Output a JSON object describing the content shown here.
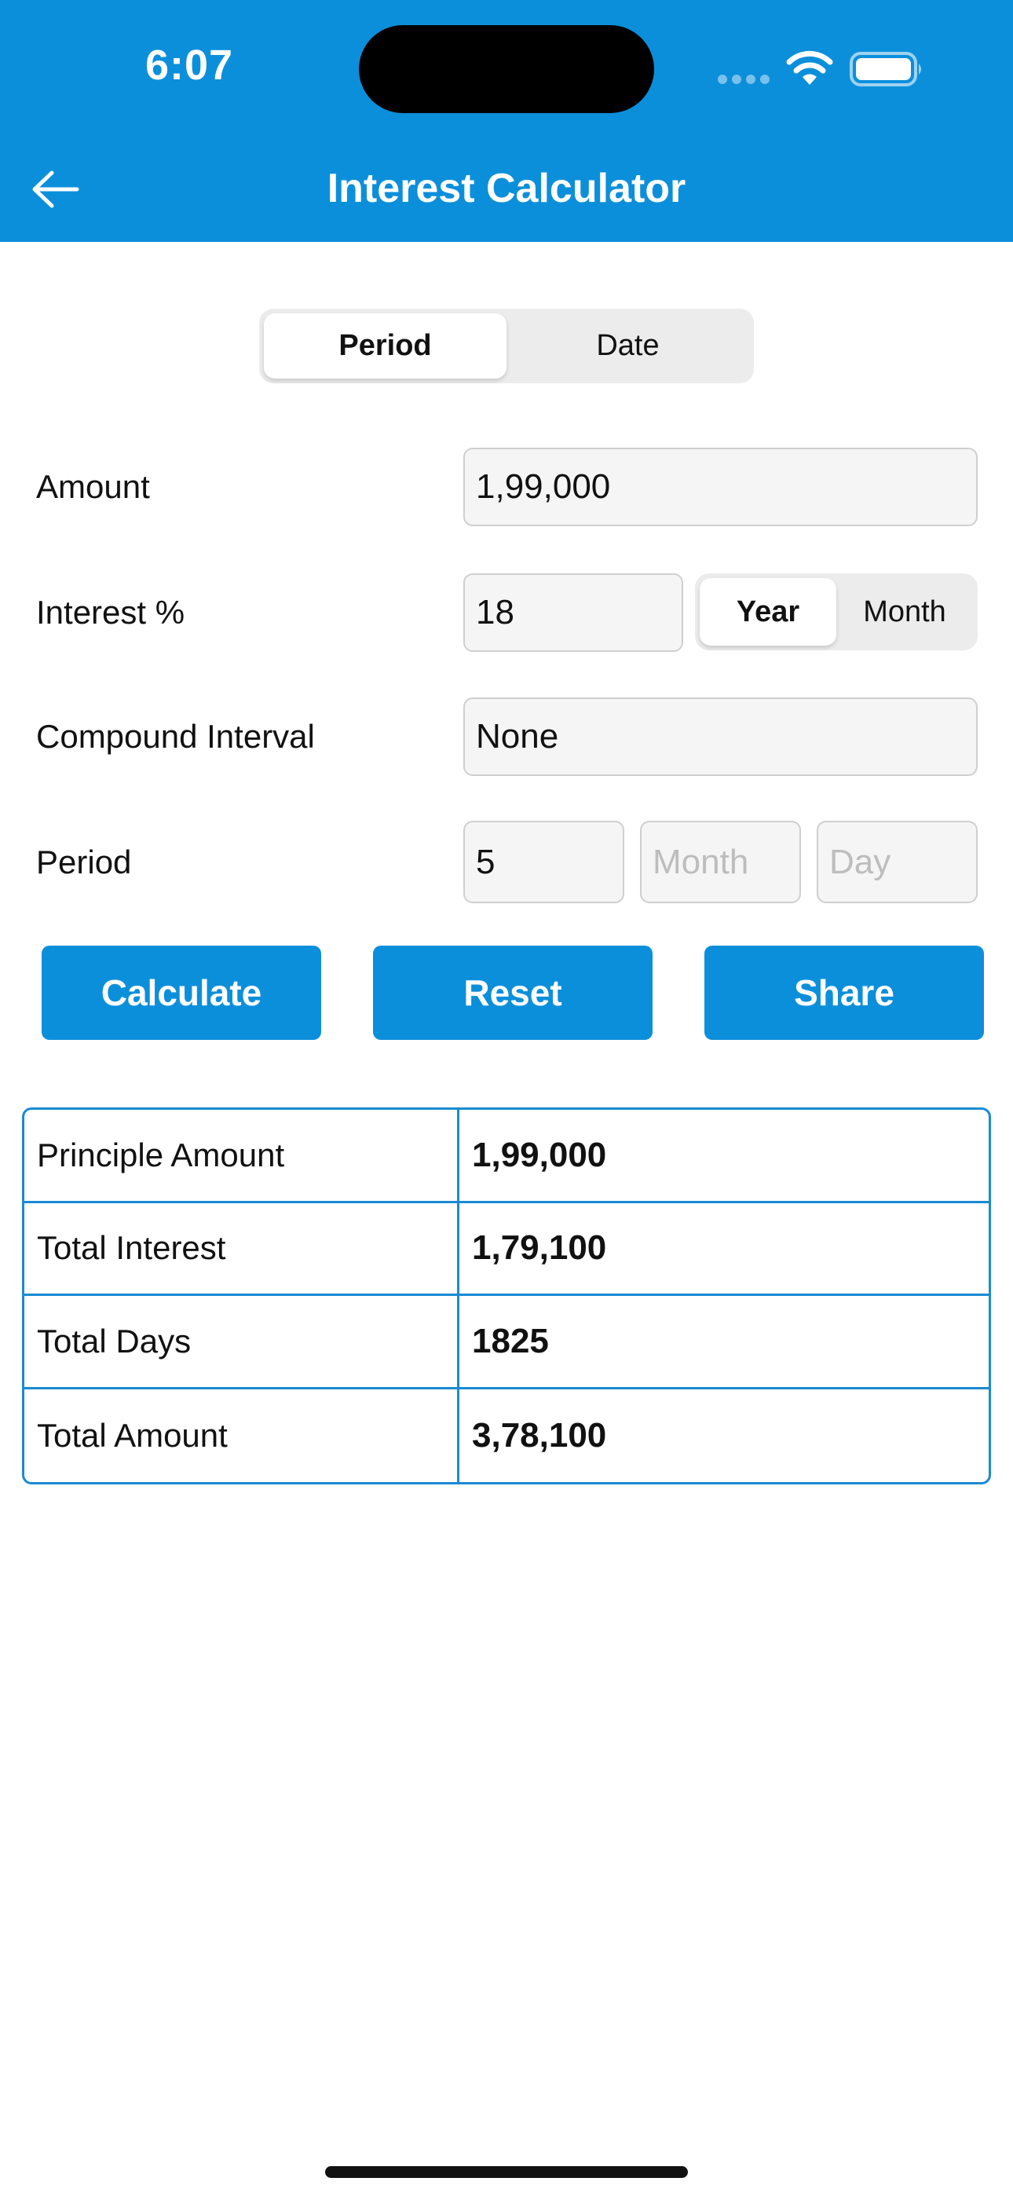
{
  "status_bar": {
    "time": "6:07"
  },
  "header": {
    "title": "Interest Calculator"
  },
  "mode_toggle": {
    "options": [
      "Period",
      "Date"
    ],
    "selected": "Period"
  },
  "form": {
    "amount": {
      "label": "Amount",
      "value": "1,99,000"
    },
    "interest": {
      "label": "Interest %",
      "value": "18",
      "unit_options": [
        "Year",
        "Month"
      ],
      "selected_unit": "Year"
    },
    "compound": {
      "label": "Compound Interval",
      "value": "None"
    },
    "period": {
      "label": "Period",
      "years": "5",
      "months_placeholder": "Month",
      "days_placeholder": "Day"
    }
  },
  "actions": {
    "calculate": "Calculate",
    "reset": "Reset",
    "share": "Share"
  },
  "results": [
    {
      "label": "Principle Amount",
      "value": "1,99,000"
    },
    {
      "label": "Total Interest",
      "value": "1,79,100"
    },
    {
      "label": "Total Days",
      "value": "1825"
    },
    {
      "label": "Total Amount",
      "value": "3,78,100"
    }
  ],
  "colors": {
    "primary": "#0c8fdb",
    "table_border": "#1a8ad3"
  },
  "icons": {
    "back": "arrow-left-icon",
    "wifi": "wifi-icon",
    "battery": "battery-icon"
  }
}
